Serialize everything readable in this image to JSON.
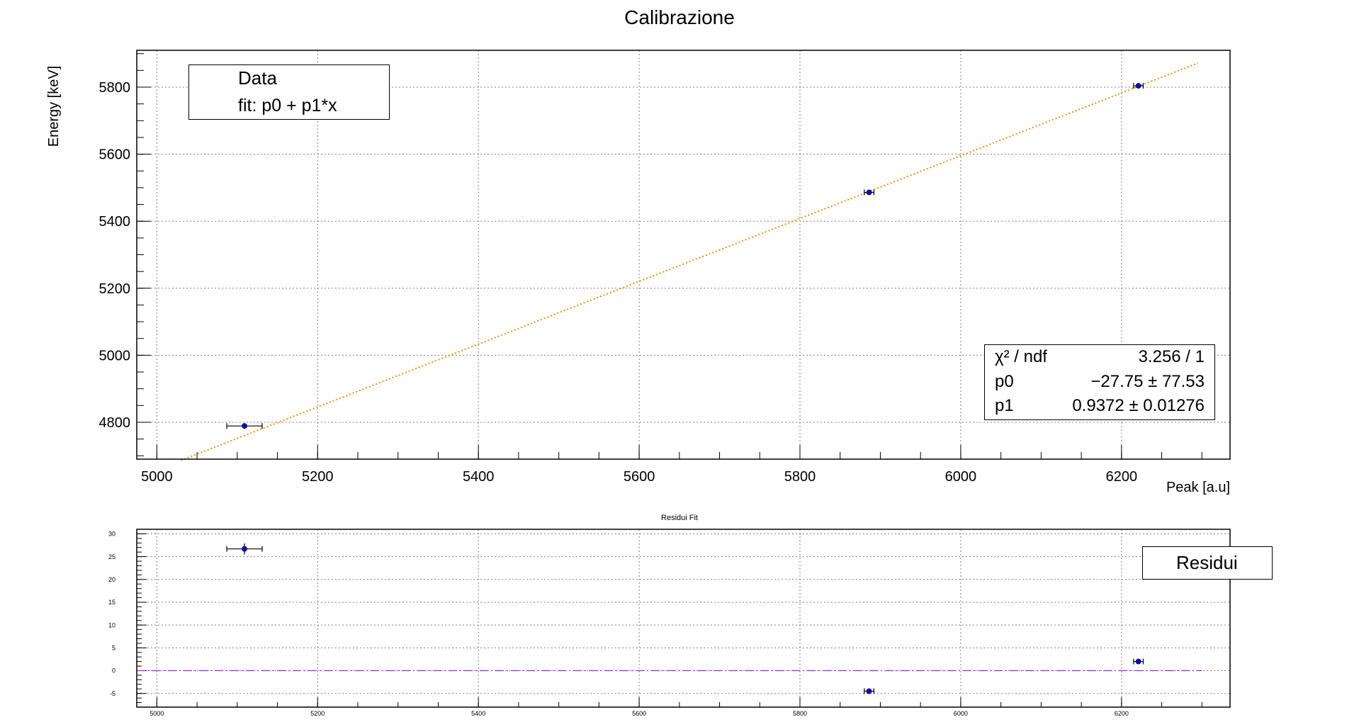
{
  "colors": {
    "data": "#0000ff",
    "fit": "#ff8c00",
    "zero_line": "#a020f0",
    "grid": "#808080"
  },
  "chart_data": [
    {
      "type": "scatter",
      "title": "Calibrazione",
      "xlabel": "Peak [a.u]",
      "ylabel": "Energy [keV]",
      "xlim": [
        4975,
        6335
      ],
      "ylim": [
        4690,
        5910
      ],
      "grid": true,
      "x_ticks": [
        5000,
        5200,
        5400,
        5600,
        5800,
        6000,
        6200
      ],
      "y_ticks": [
        4800,
        5000,
        5200,
        5400,
        5600,
        5800
      ],
      "series": [
        {
          "name": "Data",
          "style": "markers with error bars",
          "x": [
            5109,
            5886,
            6221
          ],
          "y": [
            4789,
            5486,
            5804
          ],
          "x_err": [
            22,
            6,
            6
          ],
          "y_err": [
            4,
            4,
            4
          ]
        },
        {
          "name": "fit: p0 + p1*x",
          "style": "dotted line",
          "line": {
            "p0": -27.75,
            "p1": 0.9372,
            "x_range": [
              5030,
              6295
            ]
          }
        }
      ],
      "legend": {
        "position": "top-left",
        "entries": [
          "Data",
          "fit: p0 + p1*x"
        ]
      },
      "stats_box": {
        "position": "bottom-right",
        "rows": [
          {
            "label": "χ² / ndf",
            "value": "3.256 / 1"
          },
          {
            "label": "p0",
            "value": "−27.75 ± 77.53"
          },
          {
            "label": "p1",
            "value": "0.9372 ± 0.01276"
          }
        ]
      }
    },
    {
      "type": "scatter",
      "title": "Residui Fit",
      "xlabel": "",
      "ylabel": "",
      "xlim": [
        4975,
        6335
      ],
      "ylim": [
        -8,
        31
      ],
      "grid": true,
      "x_ticks": [
        5000,
        5200,
        5400,
        5600,
        5800,
        6000,
        6200
      ],
      "y_ticks": [
        -5,
        0,
        5,
        10,
        15,
        20,
        25,
        30
      ],
      "series": [
        {
          "name": "Residui",
          "style": "markers with error bars",
          "x": [
            5109,
            5886,
            6221
          ],
          "y": [
            26.7,
            -4.5,
            2.0
          ],
          "x_err": [
            22,
            6,
            6
          ],
          "y_err": [
            1.2,
            0.6,
            0.6
          ]
        },
        {
          "name": "zero",
          "style": "dash-dot line",
          "line": {
            "p0": 0,
            "p1": 0,
            "x_range": [
              4975,
              6300
            ]
          }
        }
      ],
      "legend": {
        "position": "top-right",
        "entries": [
          "Residui"
        ]
      }
    }
  ]
}
